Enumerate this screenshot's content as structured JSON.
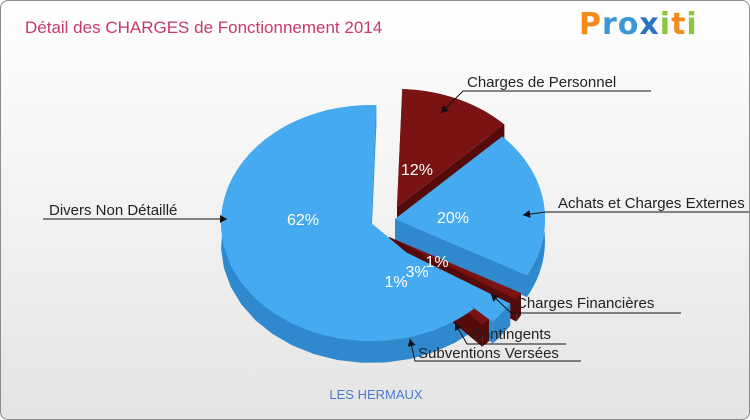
{
  "header": {
    "title": "Détail des CHARGES de Fonctionnement 2014",
    "logo": "Proxiti",
    "commune": "LES HERMAUX"
  },
  "colors": {
    "blue": "#46aaf0",
    "blue_side": "#2f89cc",
    "red": "#7a1414",
    "red_side": "#560b0b",
    "title": "#c8386b"
  },
  "chart_data": {
    "type": "pie",
    "title": "Détail des CHARGES de Fonctionnement 2014",
    "subtitle": "LES HERMAUX",
    "slices": [
      {
        "label": "Charges de Personnel",
        "value": 12,
        "pct_label": "12%",
        "color": "red"
      },
      {
        "label": "Achats et Charges Externes",
        "value": 20,
        "pct_label": "20%",
        "color": "blue"
      },
      {
        "label": "Charges Financières",
        "value": 1,
        "pct_label": "1%",
        "color": "red"
      },
      {
        "label": "Contingents",
        "value": 3,
        "pct_label": "3%",
        "color": "blue"
      },
      {
        "label": "Subventions Versées",
        "value": 1,
        "pct_label": "1%",
        "color": "red"
      },
      {
        "label": "Divers Non Détaillé",
        "value": 62,
        "pct_label": "62%",
        "color": "blue"
      }
    ]
  }
}
